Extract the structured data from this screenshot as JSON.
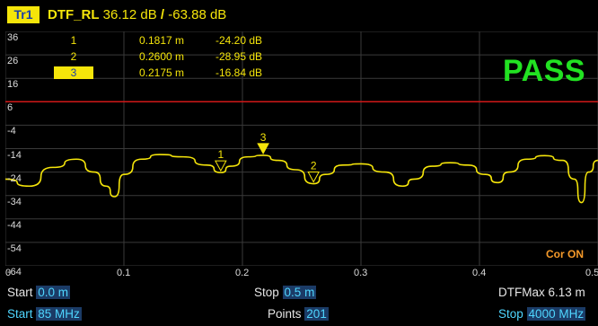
{
  "trace": {
    "tag": "Tr1",
    "name": "DTF_RL",
    "scale": "36.12 dB",
    "separator": "/",
    "reference": "-63.88 dB"
  },
  "y_axis": {
    "ticks": [
      "36",
      "26",
      "16",
      "6",
      "-4",
      "-14",
      "-24",
      "-34",
      "-44",
      "-54",
      "-64"
    ]
  },
  "x_axis": {
    "ticks": [
      "0",
      "0.1",
      "0.2",
      "0.3",
      "0.4",
      "0.5"
    ]
  },
  "markers": [
    {
      "num": "1",
      "x": "0.1817 m",
      "y": "-24.20 dB",
      "active": false
    },
    {
      "num": "2",
      "x": "0.2600 m",
      "y": "-28.95 dB",
      "active": false
    },
    {
      "num": "3",
      "x": "0.2175 m",
      "y": "-16.84 dB",
      "active": true
    }
  ],
  "status": {
    "pass": "PASS",
    "correction": "Cor ON"
  },
  "footer": {
    "start_label": "Start",
    "start_value": "0.0 m",
    "stop_label": "Stop",
    "stop_value": "0.5 m",
    "dtfmax_label": "DTFMax",
    "dtfmax_value": "6.13 m",
    "start_freq_label": "Start",
    "start_freq_value": "85 MHz",
    "points_label": "Points",
    "points_value": "201",
    "stop_freq_label": "Stop",
    "stop_freq_value": "4000 MHz"
  },
  "colors": {
    "trace": "#f5e50a",
    "limit_line": "#d01818",
    "pass": "#22e222",
    "grid": "#3a3a3a",
    "value_fg": "#4fd6ff",
    "value_bg": "#1b3b66"
  },
  "chart_data": {
    "type": "line",
    "xlim": [
      0,
      0.5
    ],
    "ylim": [
      -64,
      36
    ],
    "limit_line_y": 6,
    "x": [
      0,
      0.02,
      0.04,
      0.06,
      0.075,
      0.085,
      0.092,
      0.1,
      0.115,
      0.13,
      0.15,
      0.17,
      0.182,
      0.19,
      0.205,
      0.2175,
      0.23,
      0.245,
      0.26,
      0.27,
      0.285,
      0.3,
      0.32,
      0.335,
      0.345,
      0.36,
      0.375,
      0.39,
      0.405,
      0.415,
      0.425,
      0.44,
      0.455,
      0.47,
      0.48,
      0.486,
      0.492,
      0.5
    ],
    "y": [
      -27,
      -30,
      -22,
      -18.5,
      -24,
      -30,
      -34.5,
      -25,
      -18.5,
      -16.5,
      -17.5,
      -21,
      -24.2,
      -21.5,
      -17.5,
      -16.84,
      -19,
      -23,
      -28.95,
      -25,
      -21,
      -20.5,
      -24,
      -30,
      -27,
      -21.5,
      -20,
      -21,
      -25,
      -28.5,
      -24,
      -18.5,
      -17,
      -19,
      -27,
      -37,
      -24,
      -19
    ]
  }
}
